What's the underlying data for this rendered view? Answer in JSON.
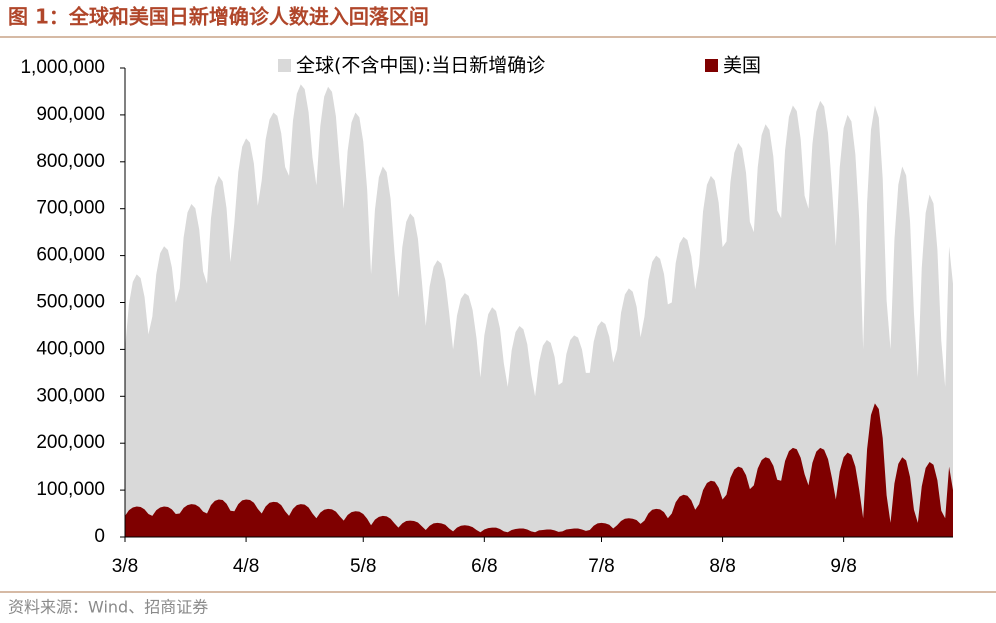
{
  "chart_data": {
    "type": "area",
    "title": "图 1：全球和美国日新增确诊人数进入回落区间",
    "source": "资料来源：Wind、招商证券",
    "categories": [
      "3/8",
      null,
      null,
      null,
      null,
      null,
      null,
      null,
      null,
      null,
      null,
      null,
      null,
      null,
      null,
      null,
      null,
      null,
      null,
      null,
      null,
      null,
      null,
      null,
      null,
      null,
      null,
      null,
      null,
      null,
      null,
      "4/8",
      null,
      null,
      null,
      null,
      null,
      null,
      null,
      null,
      null,
      null,
      null,
      null,
      null,
      null,
      null,
      null,
      null,
      null,
      null,
      null,
      null,
      null,
      null,
      null,
      null,
      null,
      null,
      null,
      null,
      "5/8",
      null,
      null,
      null,
      null,
      null,
      null,
      null,
      null,
      null,
      null,
      null,
      null,
      null,
      null,
      null,
      null,
      null,
      null,
      null,
      null,
      null,
      null,
      null,
      null,
      null,
      null,
      null,
      null,
      null,
      null,
      "6/8",
      null,
      null,
      null,
      null,
      null,
      null,
      null,
      null,
      null,
      null,
      null,
      null,
      null,
      null,
      null,
      null,
      null,
      null,
      null,
      null,
      null,
      null,
      null,
      null,
      null,
      null,
      null,
      null,
      null,
      "7/8",
      null,
      null,
      null,
      null,
      null,
      null,
      null,
      null,
      null,
      null,
      null,
      null,
      null,
      null,
      null,
      null,
      null,
      null,
      null,
      null,
      null,
      null,
      null,
      null,
      null,
      null,
      null,
      null,
      null,
      null,
      "8/8",
      null,
      null,
      null,
      null,
      null,
      null,
      null,
      null,
      null,
      null,
      null,
      null,
      null,
      null,
      null,
      null,
      null,
      null,
      null,
      null,
      null,
      null,
      null,
      null,
      null,
      null,
      null,
      null,
      null,
      null,
      "9/8",
      null,
      null,
      null,
      null,
      null,
      null,
      null,
      null,
      null,
      null,
      null,
      null,
      null,
      null,
      null,
      null,
      null,
      null,
      null,
      null,
      null,
      null,
      null,
      null,
      null,
      null,
      null,
      null
    ],
    "series": [
      {
        "name": "全球(不含中国):当日新增确诊",
        "color": "#d9d9d9",
        "values": [
          400000,
          496000,
          544000,
          560000,
          552000,
          512000,
          432000,
          470000,
          560000,
          605000,
          620000,
          612000,
          575000,
          500000,
          530000,
          638000,
          692000,
          710000,
          701000,
          656000,
          566000,
          540000,
          678000,
          747000,
          770000,
          758000,
          701000,
          586000,
          670000,
          778000,
          832000,
          850000,
          841000,
          796000,
          706000,
          760000,
          847000,
          890000,
          905000,
          898000,
          861000,
          789000,
          770000,
          887000,
          945000,
          965000,
          955000,
          906000,
          809000,
          750000,
          876000,
          939000,
          960000,
          949000,
          897000,
          792000,
          700000,
          823000,
          884000,
          905000,
          895000,
          843000,
          741000,
          560000,
          698000,
          767000,
          790000,
          778000,
          721000,
          606000,
          510000,
          618000,
          672000,
          690000,
          681000,
          636000,
          546000,
          450000,
          534000,
          576000,
          590000,
          583000,
          548000,
          478000,
          400000,
          472000,
          508000,
          520000,
          514000,
          484000,
          424000,
          340000,
          430000,
          475000,
          490000,
          482000,
          445000,
          370000,
          320000,
          398000,
          437000,
          450000,
          443000,
          411000,
          346000,
          300000,
          372000,
          408000,
          420000,
          414000,
          384000,
          324000,
          330000,
          390000,
          420000,
          430000,
          425000,
          400000,
          350000,
          350000,
          416000,
          449000,
          460000,
          454000,
          427000,
          372000,
          400000,
          478000,
          517000,
          530000,
          523000,
          491000,
          426000,
          470000,
          548000,
          587000,
          600000,
          593000,
          561000,
          496000,
          500000,
          584000,
          626000,
          640000,
          633000,
          598000,
          528000,
          580000,
          694000,
          751000,
          770000,
          760000,
          713000,
          618000,
          630000,
          756000,
          819000,
          840000,
          829000,
          777000,
          672000,
          650000,
          788000,
          857000,
          880000,
          868000,
          811000,
          696000,
          680000,
          824000,
          896000,
          920000,
          908000,
          848000,
          728000,
          700000,
          838000,
          907000,
          930000,
          918000,
          861000,
          746000,
          620000,
          788000,
          872000,
          900000,
          886000,
          816000,
          676000,
          400000,
          712000,
          868000,
          920000,
          894000,
          764000,
          504000,
          400000,
          634000,
          751000,
          790000,
          771000,
          673000,
          478000,
          340000,
          574000,
          691000,
          730000,
          711000,
          613000,
          418000,
          320000,
          620000,
          540000
        ]
      },
      {
        "name": "美国",
        "color": "#7f0000",
        "values": [
          45000,
          57000,
          63000,
          65000,
          64000,
          59000,
          49000,
          45000,
          57000,
          63000,
          65000,
          64000,
          59000,
          49000,
          50000,
          62000,
          68000,
          70000,
          69000,
          64000,
          54000,
          50000,
          68000,
          77000,
          80000,
          79000,
          71000,
          56000,
          55000,
          70000,
          78000,
          80000,
          79000,
          73000,
          60000,
          50000,
          65000,
          73000,
          75000,
          74000,
          68000,
          55000,
          45000,
          60000,
          68000,
          70000,
          69000,
          63000,
          50000,
          40000,
          52000,
          58000,
          60000,
          59000,
          54000,
          44000,
          35000,
          47000,
          53000,
          55000,
          54000,
          49000,
          39000,
          25000,
          37000,
          43000,
          45000,
          44000,
          39000,
          29000,
          20000,
          29000,
          34000,
          35000,
          34000,
          31000,
          23000,
          15000,
          24000,
          29000,
          30000,
          29000,
          26000,
          18000,
          12000,
          20000,
          24000,
          25000,
          24000,
          21000,
          15000,
          10000,
          16000,
          19000,
          20000,
          20000,
          17000,
          12000,
          10000,
          15000,
          17000,
          18000,
          18000,
          16000,
          12000,
          10000,
          14000,
          15000,
          16000,
          16000,
          14000,
          11000,
          12000,
          16000,
          17000,
          18000,
          18000,
          16000,
          13000,
          15000,
          24000,
          29000,
          30000,
          29000,
          26000,
          18000,
          25000,
          34000,
          39000,
          40000,
          39000,
          36000,
          28000,
          35000,
          50000,
          58000,
          60000,
          59000,
          53000,
          40000,
          50000,
          74000,
          86000,
          90000,
          88000,
          78000,
          58000,
          70000,
          100000,
          115000,
          120000,
          118000,
          105000,
          80000,
          90000,
          126000,
          144000,
          150000,
          147000,
          132000,
          102000,
          110000,
          146000,
          164000,
          170000,
          167000,
          152000,
          122000,
          120000,
          162000,
          183000,
          190000,
          187000,
          169000,
          134000,
          110000,
          158000,
          182000,
          190000,
          186000,
          166000,
          126000,
          80000,
          140000,
          170000,
          180000,
          175000,
          150000,
          100000,
          40000,
          187000,
          260000,
          285000,
          273000,
          211000,
          89000,
          30000,
          114000,
          156000,
          170000,
          163000,
          128000,
          58000,
          30000,
          108000,
          147000,
          160000,
          154000,
          121000,
          56000,
          40000,
          150000,
          100000
        ]
      }
    ],
    "ylim": [
      0,
      1000000
    ],
    "yticks": [
      0,
      {
        "value": 100000,
        "label": "100,000"
      },
      {
        "value": 200000,
        "label": "200,000"
      },
      {
        "value": 300000,
        "label": "300,000"
      },
      {
        "value": 400000,
        "label": "400,000"
      },
      {
        "value": 500000,
        "label": "500,000"
      },
      {
        "value": 600000,
        "label": "600,000"
      },
      {
        "value": 700000,
        "label": "700,000"
      },
      {
        "value": 800000,
        "label": "800,000"
      },
      {
        "value": 900000,
        "label": "900,000"
      },
      {
        "value": 1000000,
        "label": "1,000,000"
      }
    ]
  }
}
